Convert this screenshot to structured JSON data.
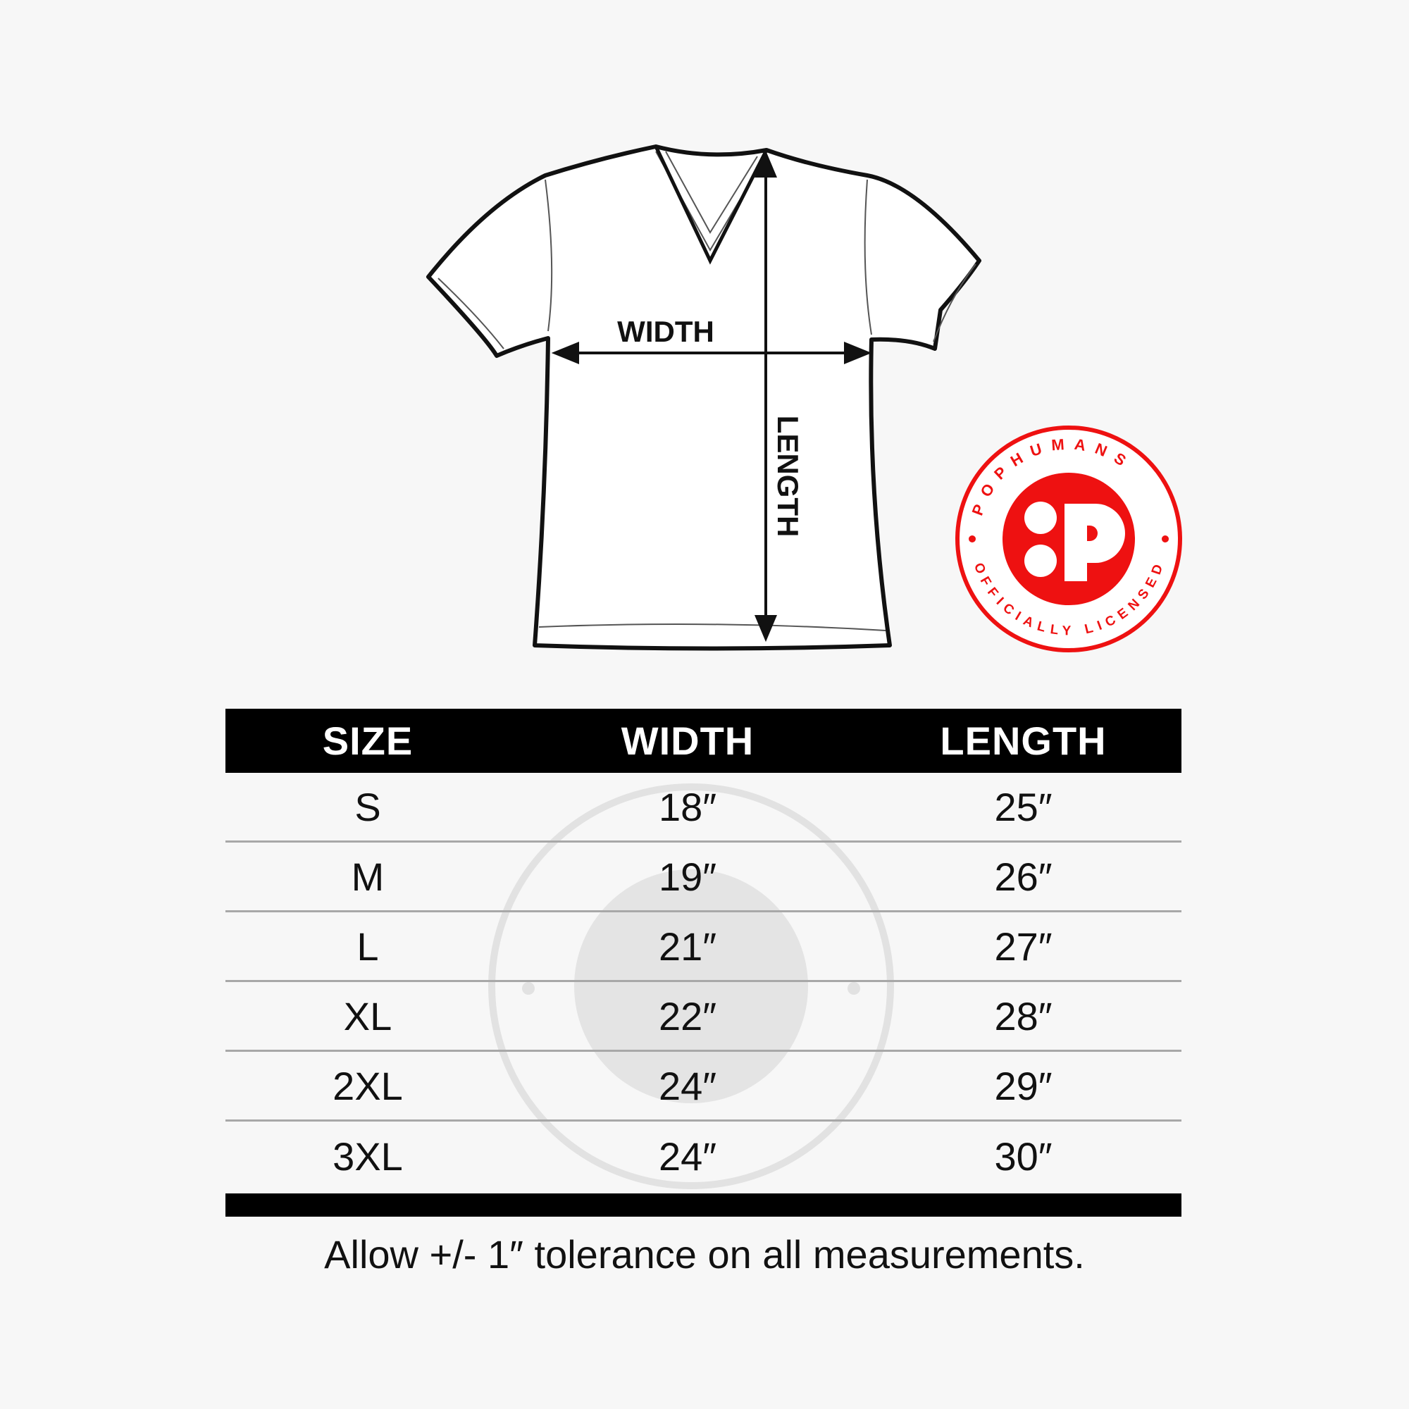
{
  "diagram": {
    "width_label": "WIDTH",
    "length_label": "LENGTH"
  },
  "badge": {
    "top_text": "POPHUMANS",
    "bottom_text": "OFFICIALLY LICENSED",
    "color": "#ee1111"
  },
  "table": {
    "headers": [
      "SIZE",
      "WIDTH",
      "LENGTH"
    ],
    "rows": [
      [
        "S",
        "18″",
        "25″"
      ],
      [
        "M",
        "19″",
        "26″"
      ],
      [
        "L",
        "21″",
        "27″"
      ],
      [
        "XL",
        "22″",
        "28″"
      ],
      [
        "2XL",
        "24″",
        "29″"
      ],
      [
        "3XL",
        "24″",
        "30″"
      ]
    ]
  },
  "footer": "Allow +/- 1″ tolerance on all measurements."
}
